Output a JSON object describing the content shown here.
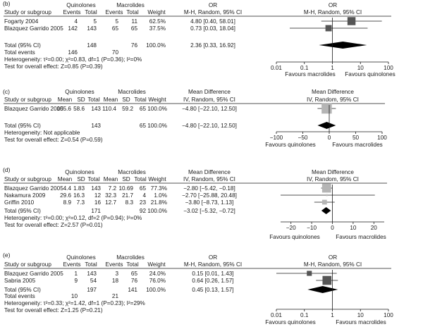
{
  "chart_data": [
    {
      "type": "forest",
      "panel": "(b)",
      "measure": "OR",
      "scale": "log",
      "group_headers": [
        "Quinolones",
        "Macrolides"
      ],
      "column_headers": [
        "Study or subgroup",
        "Events",
        "Total",
        "Events",
        "Total",
        "Weight",
        "OR",
        "M-H, Random, 95% CI",
        "OR",
        "M-H, Random, 95% CI"
      ],
      "studies": [
        {
          "name": "Fogarty 2004",
          "cells": [
            "4",
            "5",
            "5",
            "11",
            "62.5%"
          ],
          "ci_text": "4.80 [0.40, 58.01]",
          "est": 4.8,
          "lo": 0.4,
          "hi": 58.01,
          "weight": 62.5
        },
        {
          "name": "Blazquez Garrido 2005",
          "cells": [
            "142",
            "143",
            "65",
            "65",
            "37.5%"
          ],
          "ci_text": "0.73 [0.03, 18.04]",
          "est": 0.73,
          "lo": 0.03,
          "hi": 18.04,
          "weight": 37.5
        }
      ],
      "total": {
        "label": "Total (95% CI)",
        "cells": [
          "",
          "148",
          "",
          "76",
          "100.0%"
        ],
        "ci_text": "2.36 [0.33, 16.92]",
        "est": 2.36,
        "lo": 0.33,
        "hi": 16.92
      },
      "events_row": {
        "label": "Total events",
        "cells": [
          "146",
          "",
          "70",
          "",
          ""
        ]
      },
      "notes": [
        "Heterogeneity: τ²=0.00; χ²=0.83, df=1 (P=0.36); I²=0%",
        "Test for overall effect: Z=0.85 (P=0.39)"
      ],
      "axis": {
        "ticks": [
          0.01,
          0.1,
          1,
          10,
          100
        ],
        "tick_labels": [
          "0.01",
          "0.1",
          "1",
          "10",
          "100"
        ],
        "range": [
          0.01,
          100
        ],
        "null_value": 1
      },
      "favours": [
        "Favours macrolides",
        "Favours quinolones"
      ]
    },
    {
      "type": "forest",
      "panel": "(c)",
      "measure": "MD",
      "scale": "linear",
      "group_headers": [
        "Quinolones",
        "Macrolides"
      ],
      "column_headers": [
        "Study or subgroup",
        "Mean",
        "SD",
        "Total",
        "Mean",
        "SD",
        "Total",
        "Weight",
        "Mean Difference",
        "IV, Random, 95% CI",
        "Mean Difference",
        "IV, Random, 95% CI"
      ],
      "studies": [
        {
          "name": "Blazquez Garrido 2005",
          "cells": [
            "105.6",
            "58.6",
            "143",
            "110.4",
            "59.2",
            "65",
            "100.0%"
          ],
          "ci_text": "−4.80 [−22.10, 12.50]",
          "est": -4.8,
          "lo": -22.1,
          "hi": 12.5,
          "weight": 100
        }
      ],
      "total": {
        "label": "Total (95% CI)",
        "cells": [
          "",
          "",
          "143",
          "",
          "",
          "65",
          "100.0%"
        ],
        "ci_text": "−4.80 [−22.10, 12.50]",
        "est": -4.8,
        "lo": -22.1,
        "hi": 12.5
      },
      "notes": [
        "Heterogeneity: Not applicable",
        "Test for overall effect: Z=0.54 (P=0.59)"
      ],
      "axis": {
        "ticks": [
          -100,
          -50,
          0,
          50,
          100
        ],
        "tick_labels": [
          "−100",
          "−50",
          "0",
          "50",
          "100"
        ],
        "range": [
          -100,
          100
        ],
        "null_value": 0
      },
      "favours": [
        "Favours quinolones",
        "Favours macrolides"
      ]
    },
    {
      "type": "forest",
      "panel": "(d)",
      "measure": "MD",
      "scale": "linear",
      "group_headers": [
        "Quinolones",
        "Macrolides"
      ],
      "column_headers": [
        "Study or subgroup",
        "Mean",
        "SD",
        "Total",
        "Mean",
        "SD",
        "Total",
        "Weight",
        "Mean Difference",
        "IV, Random, 95% CI",
        "Mean Difference",
        "IV, Random, 95% CI"
      ],
      "studies": [
        {
          "name": "Blazquez Garrido 2005",
          "cells": [
            "4.4",
            "1.83",
            "143",
            "7.2",
            "10.69",
            "65",
            "77.3%"
          ],
          "ci_text": "−2.80 [−5.42, −0.18]",
          "est": -2.8,
          "lo": -5.42,
          "hi": -0.18,
          "weight": 77.3
        },
        {
          "name": "Nakamura 2009",
          "cells": [
            "29.6",
            "16.3",
            "12",
            "32.3",
            "21.7",
            "4",
            "1.0%"
          ],
          "ci_text": "−2.70 [−25.88, 20.48]",
          "est": -2.7,
          "lo": -25.88,
          "hi": 20.48,
          "weight": 1.0
        },
        {
          "name": "Griffin 2010",
          "cells": [
            "8.9",
            "7.3",
            "16",
            "12.7",
            "8.3",
            "23",
            "21.8%"
          ],
          "ci_text": "−3.80 [−8.73, 1.13]",
          "est": -3.8,
          "lo": -8.73,
          "hi": 1.13,
          "weight": 21.8
        }
      ],
      "total": {
        "label": "Total (95% CI)",
        "cells": [
          "",
          "",
          "171",
          "",
          "",
          "92",
          "100.0%"
        ],
        "ci_text": "−3.02 [−5.32, −0.72]",
        "est": -3.02,
        "lo": -5.32,
        "hi": -0.72
      },
      "notes": [
        "Heterogeneity: τ²=0.00; χ²=0.12, df=2 (P=0.94); I²=0%",
        "Test for overall effect: Z=2.57 (P=0.01)"
      ],
      "axis": {
        "ticks": [
          -20,
          -10,
          0,
          10,
          20
        ],
        "tick_labels": [
          "−20",
          "−10",
          "0",
          "10",
          "20"
        ],
        "range": [
          -25,
          25
        ],
        "null_value": 0
      },
      "favours": [
        "Favours quinolones",
        "Favours macrolides"
      ]
    },
    {
      "type": "forest",
      "panel": "(e)",
      "measure": "OR",
      "scale": "log",
      "group_headers": [
        "Quinolones",
        "Macrolides"
      ],
      "column_headers": [
        "Study or subgroup",
        "Events",
        "Total",
        "Events",
        "Total",
        "Weight",
        "OR",
        "M-H, Random, 95% CI",
        "OR",
        "M-H, Random, 95% CI"
      ],
      "studies": [
        {
          "name": "Blazquez Garrido 2005",
          "cells": [
            "1",
            "143",
            "3",
            "65",
            "24.0%"
          ],
          "ci_text": "0.15 [0.01, 1.43]",
          "est": 0.15,
          "lo": 0.01,
          "hi": 1.43,
          "weight": 24.0
        },
        {
          "name": "Sabria 2005",
          "cells": [
            "9",
            "54",
            "18",
            "76",
            "76.0%"
          ],
          "ci_text": "0.64 [0.26, 1.57]",
          "est": 0.64,
          "lo": 0.26,
          "hi": 1.57,
          "weight": 76.0
        }
      ],
      "total": {
        "label": "Total (95% CI)",
        "cells": [
          "",
          "197",
          "",
          "141",
          "100.0%"
        ],
        "ci_text": "0.45 [0.13, 1.57]",
        "est": 0.45,
        "lo": 0.13,
        "hi": 1.57
      },
      "events_row": {
        "label": "Total events",
        "cells": [
          "10",
          "",
          "21",
          "",
          ""
        ]
      },
      "notes": [
        "Heterogeneity: τ²=0.33; χ²=1.42, df=1 (P=0.23); I²=29%",
        "Test for overall effect: Z=1.25 (P=0.21)"
      ],
      "axis": {
        "ticks": [
          0.01,
          0.1,
          1,
          10,
          100
        ],
        "tick_labels": [
          "0.01",
          "0.1",
          "1",
          "10",
          "100"
        ],
        "range": [
          0.01,
          100
        ],
        "null_value": 1
      },
      "favours": [
        "Favours quinolones",
        "Favours macrolides"
      ]
    }
  ],
  "colors": {
    "text": "#1a1a1a",
    "square_b": "#555555",
    "square_e": "#555555",
    "square_c": "#b5b5b5",
    "square_d": "#b5b5b5",
    "diamond": "#000000"
  }
}
